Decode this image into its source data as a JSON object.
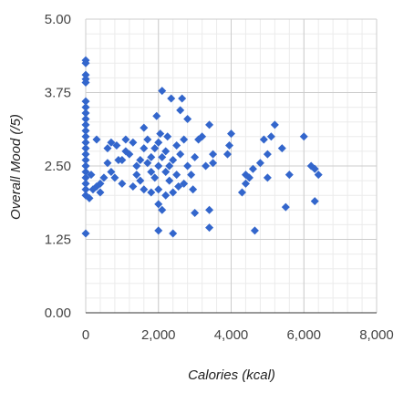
{
  "chart_data": {
    "type": "scatter",
    "title": "",
    "xlabel": "Calories (kcal)",
    "ylabel": "Overall Mood (/5)",
    "xlim": [
      0,
      8000
    ],
    "ylim": [
      0,
      5
    ],
    "x_ticks": [
      0,
      2000,
      4000,
      6000,
      8000
    ],
    "x_tick_labels": [
      "0",
      "2,000",
      "4,000",
      "6,000",
      "8,000"
    ],
    "y_ticks": [
      0,
      1.25,
      2.5,
      3.75,
      5
    ],
    "y_tick_labels": [
      "0.00",
      "1.25",
      "2.50",
      "3.75",
      "5.00"
    ],
    "grid": true,
    "minor_grid": true,
    "legend": "none",
    "marker": "diamond",
    "series": [
      {
        "color": "#3366cc",
        "points": [
          [
            0,
            4.3
          ],
          [
            0,
            4.25
          ],
          [
            0,
            4.05
          ],
          [
            0,
            3.98
          ],
          [
            0,
            3.92
          ],
          [
            0,
            3.6
          ],
          [
            0,
            3.5
          ],
          [
            0,
            3.4
          ],
          [
            0,
            3.3
          ],
          [
            0,
            3.2
          ],
          [
            0,
            3.1
          ],
          [
            0,
            3.0
          ],
          [
            0,
            2.9
          ],
          [
            0,
            2.8
          ],
          [
            0,
            2.7
          ],
          [
            0,
            2.6
          ],
          [
            0,
            2.5
          ],
          [
            0,
            2.4
          ],
          [
            0,
            2.3
          ],
          [
            0,
            2.2
          ],
          [
            0,
            2.1
          ],
          [
            0,
            2.0
          ],
          [
            0,
            1.35
          ],
          [
            100,
            1.95
          ],
          [
            150,
            2.35
          ],
          [
            200,
            2.1
          ],
          [
            300,
            2.15
          ],
          [
            300,
            2.95
          ],
          [
            400,
            2.2
          ],
          [
            400,
            2.05
          ],
          [
            500,
            2.3
          ],
          [
            600,
            2.55
          ],
          [
            600,
            2.8
          ],
          [
            700,
            2.9
          ],
          [
            700,
            2.4
          ],
          [
            800,
            2.3
          ],
          [
            850,
            2.85
          ],
          [
            900,
            2.6
          ],
          [
            1000,
            2.6
          ],
          [
            1000,
            2.2
          ],
          [
            1100,
            2.75
          ],
          [
            1100,
            2.95
          ],
          [
            1200,
            2.7
          ],
          [
            1300,
            2.15
          ],
          [
            1300,
            2.9
          ],
          [
            1400,
            2.5
          ],
          [
            1400,
            2.35
          ],
          [
            1500,
            2.25
          ],
          [
            1500,
            2.6
          ],
          [
            1600,
            2.1
          ],
          [
            1600,
            2.8
          ],
          [
            1600,
            3.15
          ],
          [
            1700,
            2.55
          ],
          [
            1700,
            2.95
          ],
          [
            1800,
            2.05
          ],
          [
            1800,
            2.65
          ],
          [
            1800,
            2.4
          ],
          [
            1900,
            2.3
          ],
          [
            1900,
            2.8
          ],
          [
            1950,
            3.35
          ],
          [
            2000,
            1.85
          ],
          [
            2000,
            2.1
          ],
          [
            2000,
            2.5
          ],
          [
            2000,
            1.4
          ],
          [
            2000,
            2.9
          ],
          [
            2050,
            3.05
          ],
          [
            2100,
            1.75
          ],
          [
            2100,
            2.65
          ],
          [
            2100,
            3.78
          ],
          [
            2200,
            2.0
          ],
          [
            2200,
            2.4
          ],
          [
            2200,
            2.75
          ],
          [
            2250,
            3.0
          ],
          [
            2300,
            2.5
          ],
          [
            2300,
            2.25
          ],
          [
            2350,
            3.65
          ],
          [
            2400,
            2.6
          ],
          [
            2400,
            2.05
          ],
          [
            2400,
            1.35
          ],
          [
            2500,
            2.35
          ],
          [
            2500,
            2.85
          ],
          [
            2550,
            2.15
          ],
          [
            2600,
            3.45
          ],
          [
            2600,
            2.7
          ],
          [
            2650,
            3.65
          ],
          [
            2700,
            2.2
          ],
          [
            2700,
            2.95
          ],
          [
            2800,
            3.3
          ],
          [
            2800,
            2.5
          ],
          [
            2900,
            2.35
          ],
          [
            2950,
            2.1
          ],
          [
            3000,
            1.7
          ],
          [
            3000,
            2.65
          ],
          [
            3100,
            2.95
          ],
          [
            3200,
            3.0
          ],
          [
            3300,
            2.5
          ],
          [
            3400,
            1.75
          ],
          [
            3400,
            1.45
          ],
          [
            3400,
            3.2
          ],
          [
            3500,
            2.7
          ],
          [
            3500,
            2.55
          ],
          [
            3900,
            2.7
          ],
          [
            3950,
            2.85
          ],
          [
            4000,
            3.05
          ],
          [
            4300,
            2.05
          ],
          [
            4400,
            2.35
          ],
          [
            4400,
            2.2
          ],
          [
            4500,
            2.3
          ],
          [
            4600,
            2.45
          ],
          [
            4650,
            1.4
          ],
          [
            4800,
            2.55
          ],
          [
            4900,
            2.95
          ],
          [
            5000,
            2.7
          ],
          [
            5000,
            2.3
          ],
          [
            5100,
            3.0
          ],
          [
            5200,
            3.2
          ],
          [
            5400,
            2.8
          ],
          [
            5500,
            1.8
          ],
          [
            5600,
            2.35
          ],
          [
            6000,
            3.0
          ],
          [
            6200,
            2.5
          ],
          [
            6300,
            2.45
          ],
          [
            6300,
            1.9
          ],
          [
            6400,
            2.35
          ]
        ]
      }
    ]
  }
}
